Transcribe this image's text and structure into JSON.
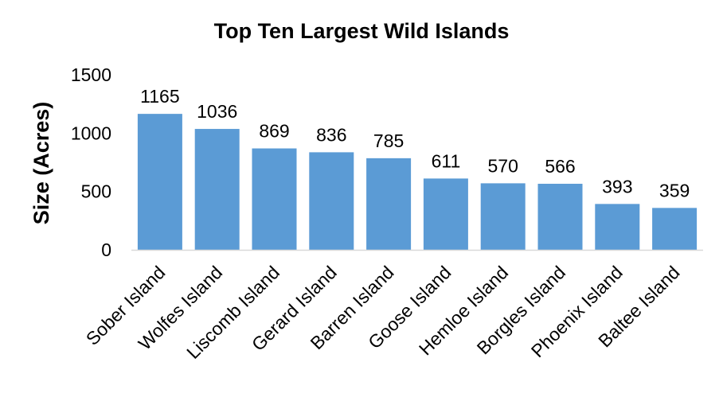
{
  "chart_data": {
    "type": "bar",
    "title": "Top Ten Largest Wild Islands",
    "xlabel": "",
    "ylabel": "Size (Acres)",
    "ylim": [
      0,
      1500
    ],
    "yticks": [
      0,
      500,
      1000,
      1500
    ],
    "grid": false,
    "legend": "none",
    "bar_color": "#5B9BD5",
    "axis_color": "#D9D9D9",
    "categories": [
      "Sober Island",
      "Wolfes Island",
      "Liscomb Island",
      "Gerard Island",
      "Barren Island",
      "Goose Island",
      "Hemloe Island",
      "Borgles Island",
      "Phoenix Island",
      "Baltee Island"
    ],
    "values": [
      1165,
      1036,
      869,
      836,
      785,
      611,
      570,
      566,
      393,
      359
    ]
  }
}
